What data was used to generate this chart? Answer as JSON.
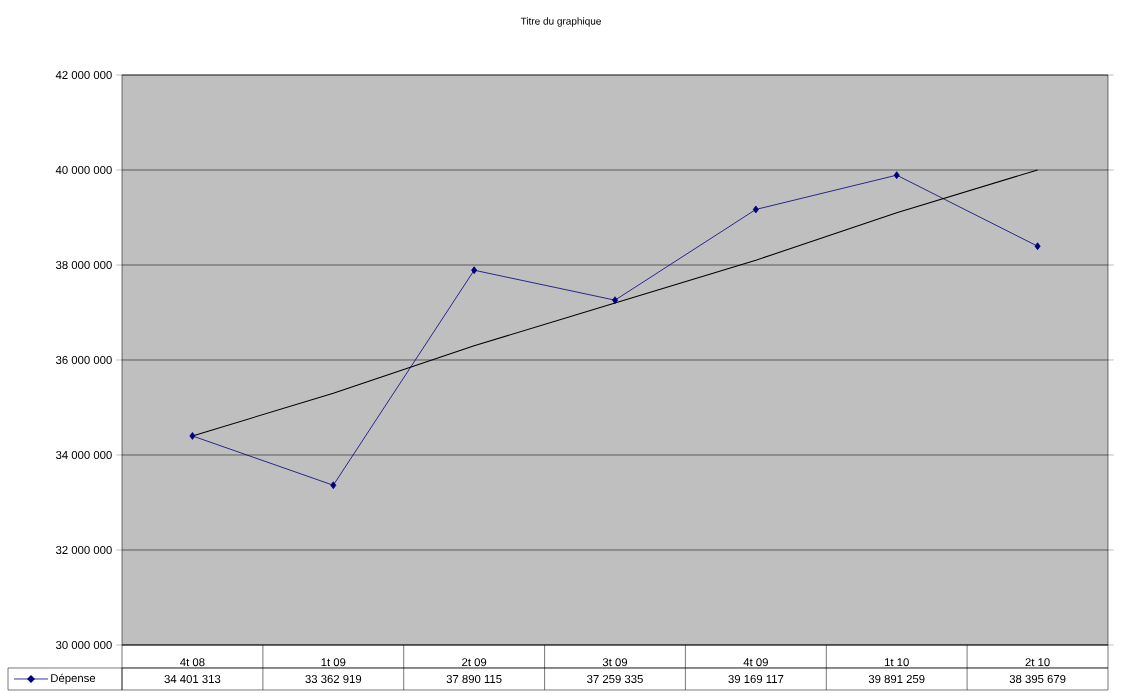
{
  "chart_data": {
    "type": "line",
    "title": "Titre du graphique",
    "categories": [
      "4t 08",
      "1t 09",
      "2t 09",
      "3t 09",
      "4t 09",
      "1t 10",
      "2t 10"
    ],
    "series": [
      {
        "name": "Dépense",
        "color": "#000080",
        "marker": "diamond",
        "values": [
          34401313,
          33362919,
          37890115,
          37259335,
          39169117,
          39891259,
          38395679
        ],
        "value_labels": [
          "34 401 313",
          "33 362 919",
          "37 890 115",
          "37 259 335",
          "39 169 117",
          "39 891 259",
          "38 395 679"
        ]
      },
      {
        "type": "line",
        "color": "#000000",
        "marker": "none",
        "values": [
          34400000,
          35300000,
          36300000,
          37200000,
          38100000,
          39100000,
          40000000
        ]
      }
    ],
    "ylim": [
      30000000,
      42000000
    ],
    "yticks": [
      {
        "value": 30000000,
        "label": "30 000 000"
      },
      {
        "value": 32000000,
        "label": "32 000 000"
      },
      {
        "value": 34000000,
        "label": "34 000 000"
      },
      {
        "value": 36000000,
        "label": "36 000 000"
      },
      {
        "value": 38000000,
        "label": "38 000 000"
      },
      {
        "value": 40000000,
        "label": "40 000 000"
      },
      {
        "value": 42000000,
        "label": "42 000 000"
      }
    ],
    "grid": "y",
    "legend": "bottom left"
  }
}
